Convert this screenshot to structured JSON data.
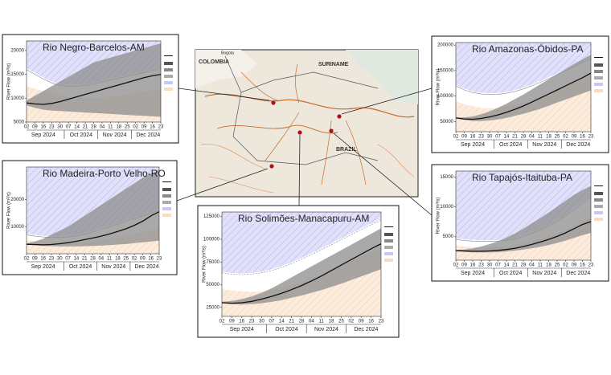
{
  "chart_data": [
    {
      "type": "line",
      "title": "Rio Negro-Barcelos-AM",
      "y_label": "River Flow (m³/s)",
      "categories": [
        "02",
        "09",
        "16",
        "23",
        "30",
        "07",
        "14",
        "21",
        "28",
        "04",
        "11",
        "18",
        "25",
        "02",
        "09",
        "16",
        "23"
      ],
      "months": [
        "Sep 2024",
        "Oct 2024",
        "Nov 2024",
        "Dec 2024"
      ],
      "ylim": [
        5000,
        22000
      ],
      "yticks": [
        5000,
        10000,
        15000,
        20000
      ],
      "series": [
        {
          "color": "#111111",
          "values": [
            9000,
            8800,
            8700,
            8900,
            9300,
            9800,
            10300,
            10800,
            11300,
            11800,
            12300,
            12800,
            13300,
            13800,
            14300,
            14700,
            15000
          ]
        },
        {
          "color": "#8c8c8c",
          "values": [
            8500,
            8000,
            7600,
            7400,
            7300,
            7200,
            7100,
            7000,
            6900,
            6800,
            6700,
            6600,
            6500,
            6400,
            6300,
            6200,
            6100
          ]
        },
        {
          "color": "#8c8c8c",
          "values": [
            9500,
            10500,
            11500,
            12500,
            13500,
            14500,
            15500,
            16500,
            17500,
            18000,
            18500,
            19000,
            19500,
            20000,
            20500,
            21000,
            21500
          ]
        },
        {
          "color": "#c8c8f5",
          "values": [
            16000,
            15000,
            14000,
            13200,
            12700,
            12500,
            12500,
            12700,
            13000,
            13400,
            13800,
            14200,
            14600,
            15000,
            15400,
            15800,
            16200
          ]
        },
        {
          "color": "#f8dcc0",
          "values": [
            12500,
            12000,
            11500,
            11000,
            10600,
            10300,
            10100,
            10000,
            10000,
            10100,
            10300,
            10500,
            10800,
            11100,
            11400,
            11700,
            12000
          ]
        }
      ]
    },
    {
      "type": "line",
      "title": "Rio Madeira-Porto Velho-RO",
      "y_label": "River Flow (m³/s)",
      "categories": [
        "02",
        "09",
        "16",
        "23",
        "30",
        "07",
        "14",
        "21",
        "28",
        "04",
        "11",
        "18",
        "25",
        "02",
        "09",
        "16",
        "23"
      ],
      "months": [
        "Sep 2024",
        "Oct 2024",
        "Nov 2024",
        "Dec 2024"
      ],
      "ylim": [
        0,
        32000
      ],
      "yticks": [
        10000,
        20000
      ],
      "series": [
        {
          "color": "#111111",
          "values": [
            3500,
            3400,
            3300,
            3400,
            3700,
            4100,
            4600,
            5200,
            5800,
            6500,
            7300,
            8200,
            9200,
            10500,
            12000,
            14000,
            15500
          ]
        },
        {
          "color": "#8c8c8c",
          "values": [
            3300,
            3100,
            2900,
            2800,
            2700,
            2700,
            2700,
            2800,
            2900,
            3000,
            3200,
            3400,
            3600,
            3900,
            4200,
            4500,
            4800
          ]
        },
        {
          "color": "#8c8c8c",
          "values": [
            3800,
            4500,
            5500,
            7000,
            8500,
            10000,
            12000,
            14000,
            16000,
            18000,
            20000,
            22000,
            24000,
            26000,
            28000,
            29500,
            31000
          ]
        },
        {
          "color": "#c8c8f5",
          "values": [
            7000,
            6500,
            6200,
            6000,
            6000,
            6200,
            6600,
            7200,
            8000,
            9000,
            10000,
            11000,
            12000,
            13000,
            14000,
            15000,
            16000
          ]
        },
        {
          "color": "#f8dcc0",
          "values": [
            5000,
            4700,
            4400,
            4200,
            4100,
            4100,
            4200,
            4400,
            4700,
            5100,
            5600,
            6200,
            6800,
            7400,
            8000,
            8600,
            9200
          ]
        }
      ]
    },
    {
      "type": "line",
      "title": "Rio Solimões-Manacapuru-AM",
      "y_label": "River Flow (m³/s)",
      "categories": [
        "02",
        "09",
        "16",
        "23",
        "30",
        "07",
        "14",
        "21",
        "28",
        "04",
        "11",
        "18",
        "25",
        "02",
        "09",
        "16",
        "23"
      ],
      "months": [
        "Sep 2024",
        "Oct 2024",
        "Nov 2024",
        "Dec 2024"
      ],
      "ylim": [
        15000,
        130000
      ],
      "yticks": [
        25000,
        50000,
        75000,
        100000,
        125000
      ],
      "series": [
        {
          "color": "#111111",
          "values": [
            30000,
            29500,
            30000,
            31500,
            34000,
            37000,
            40500,
            44500,
            49000,
            54000,
            59500,
            65500,
            71500,
            77500,
            83500,
            89500,
            95000
          ]
        },
        {
          "color": "#8c8c8c",
          "values": [
            29500,
            28500,
            28000,
            28500,
            29500,
            31000,
            33000,
            35500,
            38000,
            41000,
            44000,
            47500,
            51000,
            55000,
            59000,
            63000,
            67000
          ]
        },
        {
          "color": "#8c8c8c",
          "values": [
            31000,
            32000,
            34000,
            37000,
            41000,
            46000,
            52000,
            58000,
            64000,
            70000,
            76000,
            82000,
            88000,
            94000,
            100000,
            106000,
            112000
          ]
        },
        {
          "color": "#c8c8f5",
          "values": [
            63000,
            61500,
            61000,
            61500,
            63000,
            65500,
            69000,
            73000,
            78000,
            83000,
            88500,
            94000,
            99500,
            105000,
            110500,
            116000,
            121000
          ]
        },
        {
          "color": "#f8dcc0",
          "values": [
            45000,
            43500,
            42500,
            42000,
            42500,
            44000,
            46000,
            49000,
            52500,
            56500,
            61000,
            66000,
            71000,
            76000,
            81000,
            86000,
            91000
          ]
        }
      ]
    },
    {
      "type": "line",
      "title": "Rio Amazonas-Óbidos-PA",
      "y_label": "River Flow (m³/s)",
      "categories": [
        "02",
        "09",
        "16",
        "23",
        "30",
        "07",
        "14",
        "21",
        "28",
        "04",
        "11",
        "18",
        "25",
        "02",
        "09",
        "16",
        "23"
      ],
      "months": [
        "Sep 2024",
        "Oct 2024",
        "Nov 2024",
        "Dec 2024"
      ],
      "ylim": [
        30000,
        205000
      ],
      "yticks": [
        50000,
        100000,
        150000,
        200000
      ],
      "series": [
        {
          "color": "#111111",
          "values": [
            57000,
            55000,
            54500,
            56000,
            59000,
            63000,
            68000,
            74000,
            80500,
            88000,
            96000,
            104000,
            112000,
            120000,
            128000,
            136000,
            145000
          ]
        },
        {
          "color": "#8c8c8c",
          "values": [
            56000,
            53000,
            51000,
            51000,
            52000,
            54000,
            57000,
            61000,
            65000,
            70000,
            75000,
            81000,
            87000,
            93000,
            99000,
            105000,
            111000
          ]
        },
        {
          "color": "#8c8c8c",
          "values": [
            58000,
            58000,
            60000,
            64000,
            70000,
            77000,
            85000,
            94000,
            103000,
            113000,
            123000,
            133000,
            143000,
            153000,
            163000,
            172000,
            181000
          ]
        },
        {
          "color": "#c8c8f5",
          "values": [
            120000,
            112000,
            107000,
            104000,
            103000,
            103500,
            105500,
            109000,
            114000,
            120000,
            127000,
            134000,
            142000,
            150000,
            158000,
            166000,
            174000
          ]
        },
        {
          "color": "#f8dcc0",
          "values": [
            90000,
            84000,
            80000,
            77000,
            76000,
            76500,
            78500,
            82000,
            86500,
            92000,
            98000,
            104500,
            111500,
            118500,
            125500,
            132500,
            140000
          ]
        }
      ]
    },
    {
      "type": "line",
      "title": "Rio Tapajós-Itaituba-PA",
      "y_label": "River Flow (m³/s)",
      "categories": [
        "02",
        "09",
        "16",
        "23",
        "30",
        "07",
        "14",
        "21",
        "28",
        "04",
        "11",
        "18",
        "25",
        "02",
        "09",
        "16",
        "23"
      ],
      "months": [
        "Sep 2024",
        "Oct 2024",
        "Nov 2024",
        "Dec 2024"
      ],
      "ylim": [
        1000,
        16000
      ],
      "yticks": [
        5000,
        10000,
        15000
      ],
      "series": [
        {
          "color": "#111111",
          "values": [
            2600,
            2550,
            2500,
            2500,
            2550,
            2650,
            2800,
            3000,
            3300,
            3650,
            4050,
            4500,
            5000,
            5600,
            6300,
            7000,
            7500
          ]
        },
        {
          "color": "#8c8c8c",
          "values": [
            2500,
            2400,
            2300,
            2300,
            2300,
            2350,
            2450,
            2600,
            2800,
            3000,
            3250,
            3550,
            3900,
            4300,
            4750,
            5200,
            5600
          ]
        },
        {
          "color": "#8c8c8c",
          "values": [
            2700,
            2800,
            3000,
            3300,
            3700,
            4200,
            4800,
            5500,
            6300,
            7200,
            8100,
            9000,
            10000,
            11000,
            12000,
            12800,
            13500
          ]
        },
        {
          "color": "#c8c8f5",
          "values": [
            4500,
            4300,
            4200,
            4150,
            4150,
            4200,
            4350,
            4600,
            5000,
            5500,
            6100,
            6800,
            7600,
            8500,
            9500,
            10500,
            11800
          ]
        },
        {
          "color": "#f8dcc0",
          "values": [
            3500,
            3300,
            3200,
            3150,
            3150,
            3200,
            3300,
            3500,
            3800,
            4150,
            4550,
            5000,
            5500,
            6100,
            6800,
            7500,
            8200
          ]
        }
      ]
    }
  ],
  "map": {
    "labels": [
      "COLOMBIA",
      "SURINAME",
      "BRAZIL",
      "Bogota"
    ]
  }
}
